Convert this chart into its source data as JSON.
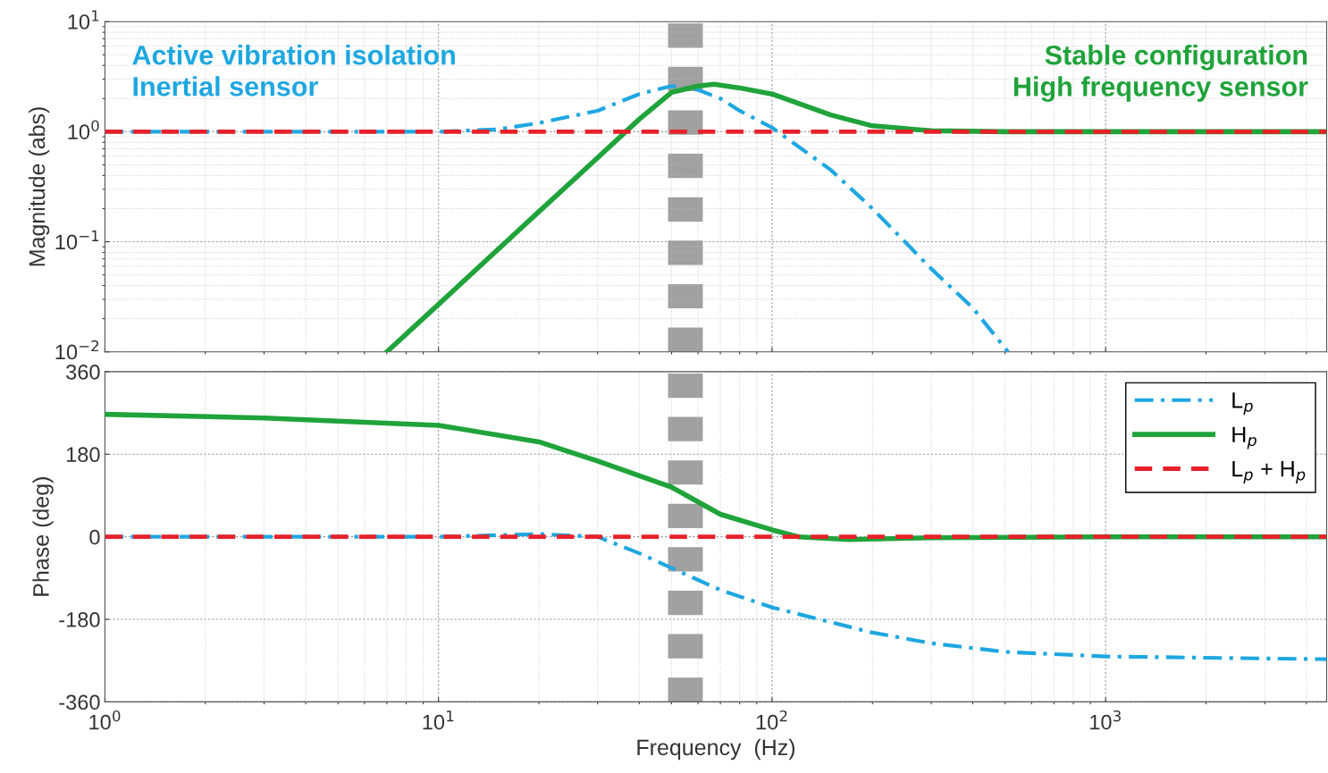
{
  "chart_data": [
    {
      "type": "line",
      "ylabel": "Magnitude (abs)",
      "log": "xy",
      "grid": true,
      "tick_labels": "y",
      "xlim": [
        1,
        4600
      ],
      "xticks": [
        1,
        10,
        100,
        1000
      ],
      "ylim": [
        0.01,
        10
      ],
      "yticks": [
        {
          "value": 0.01,
          "label": "10$^{−2}$"
        },
        {
          "value": 0.1,
          "label": "10$^{−1}$"
        },
        {
          "value": 1,
          "label": "10$^{0}$"
        },
        {
          "value": 10,
          "label": "10$^{1}$"
        }
      ],
      "annotations": [
        "Active vibration isolation\nInertial sensor",
        "Stable configuration\nHigh frequency sensor"
      ],
      "ref_lines": [
        {
          "axis": "x",
          "value": 55,
          "color": "#a0a0a0",
          "line_style": "dashed"
        }
      ],
      "series": [
        {
          "color": "#1ea7e1",
          "line_style": "dashdot",
          "x": [
            1,
            5,
            10,
            15,
            20,
            30,
            40,
            50,
            60,
            70,
            80,
            100,
            150,
            200,
            300,
            400,
            510
          ],
          "values": [
            1,
            1,
            1,
            1.05,
            1.2,
            1.55,
            2.2,
            2.6,
            2.4,
            2.0,
            1.55,
            1.09,
            0.45,
            0.2,
            0.057,
            0.025,
            0.01
          ]
        },
        {
          "color": "#1fa33a",
          "line_style": "solid",
          "x": [
            7,
            10,
            19.7,
            30,
            40,
            50,
            60,
            67,
            80,
            100,
            150,
            200,
            300,
            500,
            1000,
            4600
          ],
          "values": [
            0.01,
            0.027,
            0.18,
            0.58,
            1.3,
            2.28,
            2.6,
            2.7,
            2.5,
            2.2,
            1.42,
            1.13,
            1.02,
            1,
            1,
            1
          ]
        },
        {
          "color": "#e8202a",
          "line_style": "dashed",
          "x": [
            1,
            4600
          ],
          "values": [
            1,
            1
          ]
        }
      ]
    },
    {
      "type": "line",
      "xlabel": "Frequency  (Hz)",
      "ylabel": "Phase (deg)",
      "log": "x",
      "grid": true,
      "legend": "top right",
      "xlim": [
        1,
        4600
      ],
      "xticks": [
        {
          "value": 1,
          "label": "10$^{0}$"
        },
        {
          "value": 10,
          "label": "10$^{1}$"
        },
        {
          "value": 100,
          "label": "10$^{2}$"
        },
        {
          "value": 1000,
          "label": "10$^{3}$"
        }
      ],
      "ylim": [
        -360,
        360
      ],
      "yticks": [
        -360,
        -180,
        0,
        180,
        360
      ],
      "ref_lines": [
        {
          "axis": "x",
          "value": 55,
          "color": "#a0a0a0",
          "line_style": "dashed"
        }
      ],
      "series": [
        {
          "name": "L$_{p}$",
          "color": "#1ea7e1",
          "line_style": "dashdot",
          "x": [
            1,
            10,
            20,
            30,
            40,
            50,
            70,
            100,
            200,
            300,
            500,
            1000,
            4600
          ],
          "values": [
            0,
            0,
            6,
            0,
            -36,
            -68,
            -116,
            -154,
            -209,
            -232,
            -251,
            -261,
            -267
          ]
        },
        {
          "name": "H$_{p}$",
          "color": "#1fa33a",
          "line_style": "solid",
          "x": [
            1,
            3,
            10,
            20,
            30,
            50,
            70,
            100,
            120,
            170,
            300,
            1000,
            4600
          ],
          "values": [
            267,
            259,
            243,
            207,
            165,
            108,
            49,
            15,
            0,
            -6,
            -2,
            0,
            0
          ]
        },
        {
          "name": "L$_{p}$ + H$_{p}$",
          "color": "#e8202a",
          "line_style": "dashed",
          "x": [
            1,
            4600
          ],
          "values": [
            0,
            0
          ]
        }
      ]
    }
  ]
}
